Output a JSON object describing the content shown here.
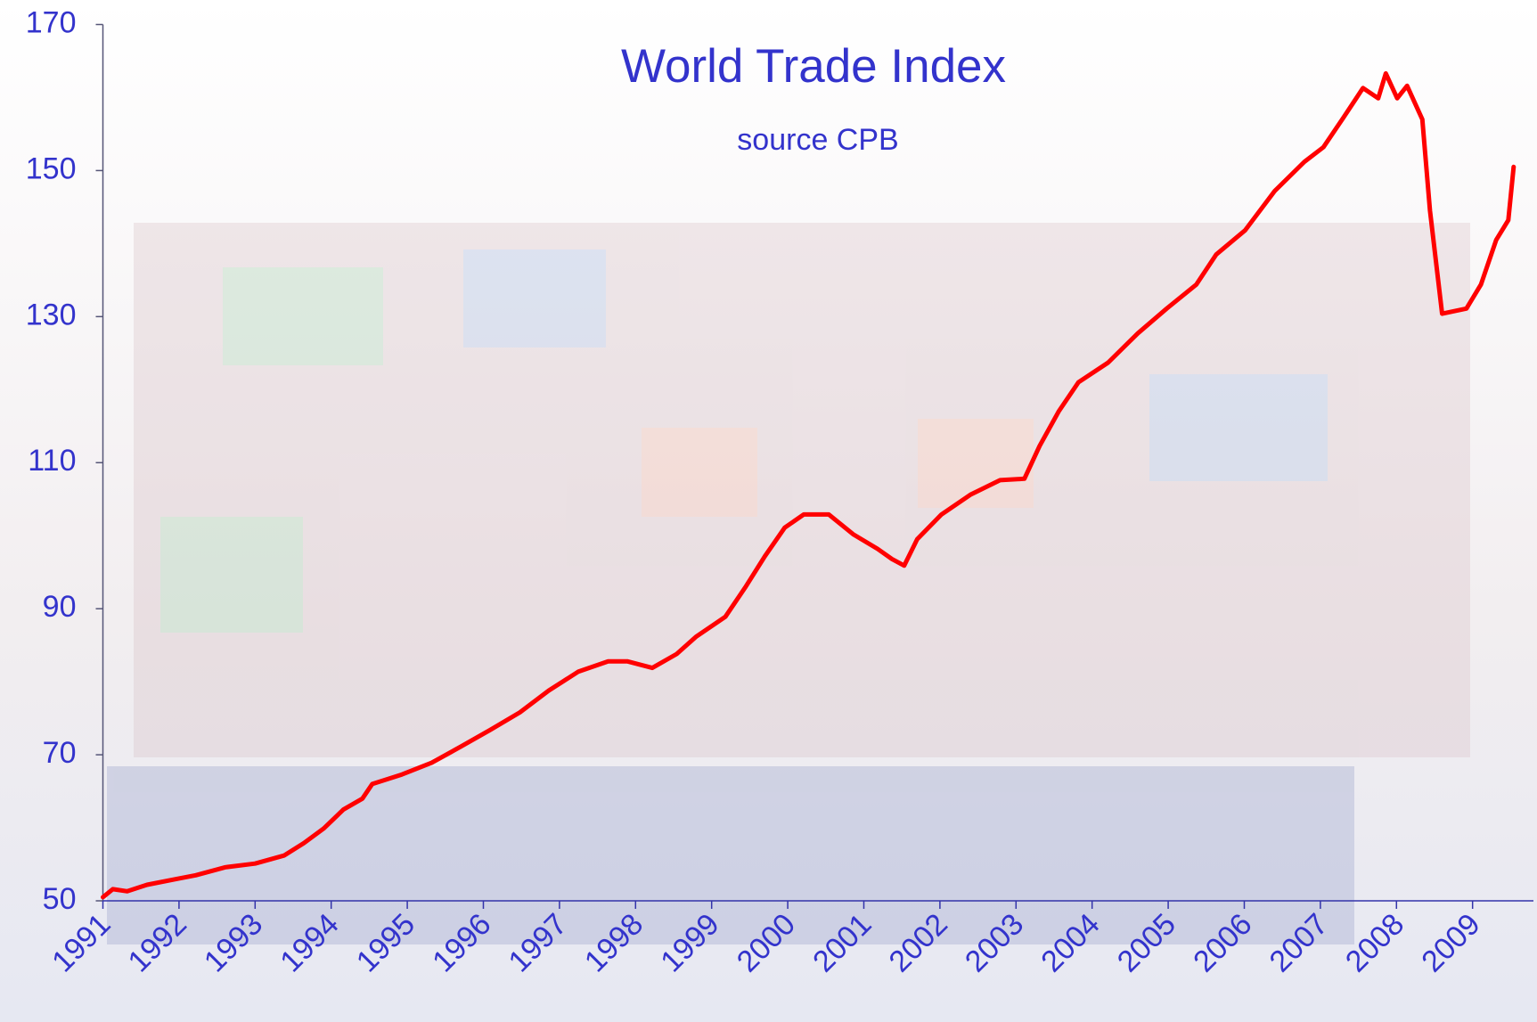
{
  "chart_data": {
    "type": "line",
    "title": "World Trade Index",
    "subtitle": "source  CPB",
    "x": [
      1991.0,
      1991.13,
      1991.32,
      1991.58,
      1991.97,
      1992.22,
      1992.61,
      1993.0,
      1993.38,
      1993.64,
      1993.9,
      1994.16,
      1994.41,
      1994.54,
      1994.93,
      1995.32,
      1995.7,
      1996.09,
      1996.48,
      1996.86,
      1997.25,
      1997.64,
      1997.89,
      1998.22,
      1998.54,
      1998.8,
      1999.18,
      1999.44,
      1999.7,
      1999.96,
      2000.21,
      2000.54,
      2000.86,
      2001.18,
      2001.37,
      2001.53,
      2001.7,
      2002.02,
      2002.4,
      2002.79,
      2003.11,
      2003.31,
      2003.56,
      2003.82,
      2004.21,
      2004.6,
      2004.98,
      2005.37,
      2005.63,
      2006.01,
      2006.4,
      2006.79,
      2007.04,
      2007.3,
      2007.56,
      2007.76,
      2007.86,
      2008.01,
      2008.14,
      2008.34,
      2008.44,
      2008.6,
      2008.92,
      2009.11,
      2009.31,
      2009.47,
      2009.54
    ],
    "values": [
      50.5,
      51.6,
      51.3,
      52.2,
      53.0,
      53.5,
      54.6,
      55.1,
      56.2,
      57.9,
      59.9,
      62.5,
      64.0,
      66.0,
      67.3,
      68.9,
      71.1,
      73.4,
      75.8,
      78.8,
      81.4,
      82.8,
      82.8,
      81.9,
      83.8,
      86.2,
      88.9,
      92.9,
      97.2,
      101.1,
      102.9,
      102.9,
      100.2,
      98.2,
      96.8,
      95.9,
      99.5,
      102.9,
      105.6,
      107.6,
      107.8,
      112.3,
      117.0,
      121.0,
      123.7,
      127.7,
      131.1,
      134.4,
      138.5,
      141.8,
      147.2,
      151.2,
      153.2,
      157.2,
      161.3,
      159.9,
      163.3,
      159.9,
      161.6,
      157.0,
      144.5,
      130.4,
      131.1,
      134.4,
      140.5,
      143.2,
      150.5
    ],
    "color": "#ff0000",
    "xlim": [
      1991,
      2009.8
    ],
    "xticks": [
      1991,
      1992,
      1993,
      1994,
      1995,
      1996,
      1997,
      1998,
      1999,
      2000,
      2001,
      2002,
      2003,
      2004,
      2005,
      2006,
      2007,
      2008,
      2009
    ],
    "ylim": [
      50,
      170
    ],
    "yticks": [
      50,
      70,
      90,
      110,
      130,
      150,
      170
    ]
  }
}
